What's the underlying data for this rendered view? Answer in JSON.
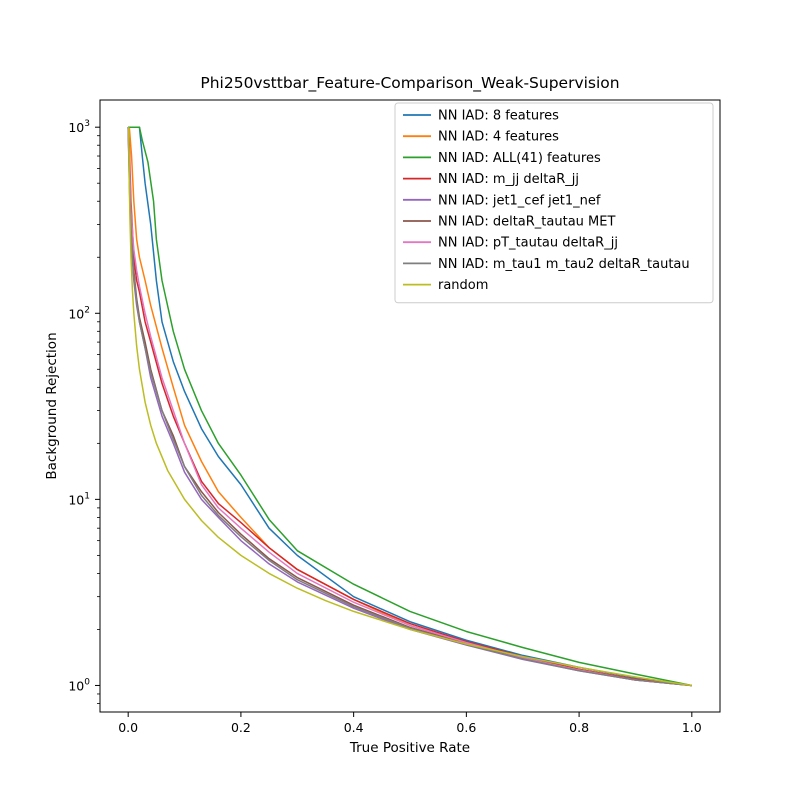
{
  "chart_data": {
    "type": "line",
    "title": "Phi250vsttbar_Feature-Comparison_Weak-Supervision",
    "xlabel": "True Positive Rate",
    "ylabel": "Background Rejection",
    "xlim": [
      -0.05,
      1.05
    ],
    "ylim_log": [
      0.72,
      1400
    ],
    "yscale": "log",
    "x_ticks": [
      0.0,
      0.2,
      0.4,
      0.6,
      0.8,
      1.0
    ],
    "x_tick_labels": [
      "0.0",
      "0.2",
      "0.4",
      "0.6",
      "0.8",
      "1.0"
    ],
    "y_ticks": [
      1,
      10,
      100,
      1000
    ],
    "y_tick_labels": [
      {
        "base": "10",
        "exp": "0"
      },
      {
        "base": "10",
        "exp": "1"
      },
      {
        "base": "10",
        "exp": "2"
      },
      {
        "base": "10",
        "exp": "3"
      }
    ],
    "grid": false,
    "legend_position": "top-right",
    "series": [
      {
        "name": "NN IAD: 8 features",
        "color": "#1f77b4",
        "x": [
          0.0,
          0.002,
          0.02,
          0.025,
          0.03,
          0.04,
          0.05,
          0.06,
          0.08,
          0.1,
          0.13,
          0.16,
          0.2,
          0.25,
          0.3,
          0.4,
          0.5,
          0.6,
          0.7,
          0.8,
          0.9,
          1.0
        ],
        "y": [
          1000,
          1000,
          1000,
          700,
          500,
          300,
          150,
          90,
          55,
          38,
          24,
          17,
          12,
          7,
          5,
          3.0,
          2.2,
          1.75,
          1.45,
          1.25,
          1.1,
          1.0
        ]
      },
      {
        "name": "NN IAD: 4 features",
        "color": "#ff7f0e",
        "x": [
          0.0,
          0.002,
          0.006,
          0.01,
          0.015,
          0.02,
          0.03,
          0.04,
          0.06,
          0.08,
          0.1,
          0.13,
          0.16,
          0.2,
          0.25,
          0.3,
          0.4,
          0.5,
          0.6,
          0.7,
          0.8,
          0.9,
          1.0
        ],
        "y": [
          1000,
          1000,
          700,
          400,
          250,
          200,
          150,
          110,
          65,
          40,
          25,
          16,
          11,
          8,
          5.5,
          4.2,
          2.9,
          2.1,
          1.7,
          1.42,
          1.22,
          1.08,
          1.0
        ]
      },
      {
        "name": "NN IAD: ALL(41) features",
        "color": "#2ca02c",
        "x": [
          0.0,
          0.002,
          0.02,
          0.025,
          0.035,
          0.045,
          0.05,
          0.06,
          0.08,
          0.1,
          0.13,
          0.16,
          0.2,
          0.25,
          0.3,
          0.4,
          0.5,
          0.6,
          0.7,
          0.8,
          0.9,
          1.0
        ],
        "y": [
          1000,
          1000,
          1000,
          850,
          650,
          400,
          250,
          150,
          80,
          50,
          30,
          20,
          13.5,
          7.8,
          5.3,
          3.5,
          2.5,
          1.95,
          1.6,
          1.33,
          1.15,
          1.0
        ]
      },
      {
        "name": "NN IAD: m_jj deltaR_jj",
        "color": "#d62728",
        "x": [
          0.0,
          0.002,
          0.005,
          0.01,
          0.015,
          0.02,
          0.03,
          0.04,
          0.06,
          0.08,
          0.1,
          0.13,
          0.16,
          0.2,
          0.25,
          0.3,
          0.4,
          0.5,
          0.6,
          0.7,
          0.8,
          0.9,
          1.0
        ],
        "y": [
          1000,
          800,
          400,
          200,
          150,
          130,
          90,
          70,
          42,
          28,
          20,
          12.5,
          9.5,
          7.5,
          5.5,
          4.2,
          2.9,
          2.15,
          1.72,
          1.43,
          1.22,
          1.08,
          1.0
        ]
      },
      {
        "name": "NN IAD: jet1_cef jet1_nef",
        "color": "#9467bd",
        "x": [
          0.0,
          0.002,
          0.005,
          0.01,
          0.015,
          0.02,
          0.03,
          0.04,
          0.06,
          0.08,
          0.1,
          0.13,
          0.16,
          0.2,
          0.25,
          0.3,
          0.4,
          0.5,
          0.6,
          0.7,
          0.8,
          0.9,
          1.0
        ],
        "y": [
          1000,
          500,
          250,
          150,
          110,
          90,
          65,
          45,
          28,
          20,
          14,
          10,
          8,
          6,
          4.5,
          3.6,
          2.6,
          2.0,
          1.65,
          1.38,
          1.2,
          1.07,
          1.0
        ]
      },
      {
        "name": "NN IAD: deltaR_tautau MET",
        "color": "#8c564b",
        "x": [
          0.0,
          0.002,
          0.005,
          0.01,
          0.015,
          0.02,
          0.03,
          0.04,
          0.06,
          0.08,
          0.1,
          0.13,
          0.16,
          0.2,
          0.25,
          0.3,
          0.4,
          0.5,
          0.6,
          0.7,
          0.8,
          0.9,
          1.0
        ],
        "y": [
          1000,
          600,
          300,
          170,
          120,
          95,
          70,
          50,
          30,
          22,
          15,
          11,
          8.5,
          6.5,
          4.8,
          3.8,
          2.7,
          2.05,
          1.68,
          1.4,
          1.21,
          1.07,
          1.0
        ]
      },
      {
        "name": "NN IAD: pT_tautau deltaR_jj",
        "color": "#e377c2",
        "x": [
          0.0,
          0.002,
          0.005,
          0.01,
          0.015,
          0.02,
          0.03,
          0.04,
          0.06,
          0.08,
          0.1,
          0.13,
          0.16,
          0.2,
          0.25,
          0.3,
          0.4,
          0.5,
          0.6,
          0.7,
          0.8,
          0.9,
          1.0
        ],
        "y": [
          1000,
          700,
          350,
          220,
          170,
          140,
          100,
          75,
          45,
          30,
          20,
          12,
          9,
          7,
          5.2,
          4.0,
          2.8,
          2.1,
          1.7,
          1.41,
          1.21,
          1.07,
          1.0
        ]
      },
      {
        "name": "NN IAD: m_tau1 m_tau2 deltaR_tautau",
        "color": "#7f7f7f",
        "x": [
          0.0,
          0.002,
          0.005,
          0.01,
          0.015,
          0.02,
          0.03,
          0.04,
          0.06,
          0.08,
          0.1,
          0.13,
          0.16,
          0.2,
          0.25,
          0.3,
          0.4,
          0.5,
          0.6,
          0.7,
          0.8,
          0.9,
          1.0
        ],
        "y": [
          1000,
          550,
          280,
          160,
          115,
          90,
          65,
          48,
          30,
          21,
          15,
          10.5,
          8.2,
          6.3,
          4.7,
          3.7,
          2.65,
          2.03,
          1.66,
          1.39,
          1.2,
          1.07,
          1.0
        ]
      },
      {
        "name": "random",
        "color": "#bcbd22",
        "function": "1/x",
        "x": [
          0.001,
          0.0015,
          0.002,
          0.003,
          0.005,
          0.0075,
          0.01,
          0.015,
          0.02,
          0.03,
          0.04,
          0.05,
          0.07,
          0.1,
          0.13,
          0.16,
          0.2,
          0.25,
          0.3,
          0.35,
          0.4,
          0.5,
          0.6,
          0.7,
          0.8,
          0.9,
          1.0
        ],
        "y": [
          1000,
          666.7,
          500,
          333.3,
          200,
          133.3,
          100,
          66.7,
          50,
          33.3,
          25,
          20,
          14.3,
          10,
          7.7,
          6.25,
          5,
          4,
          3.33,
          2.86,
          2.5,
          2,
          1.67,
          1.43,
          1.25,
          1.11,
          1.0
        ]
      }
    ]
  }
}
